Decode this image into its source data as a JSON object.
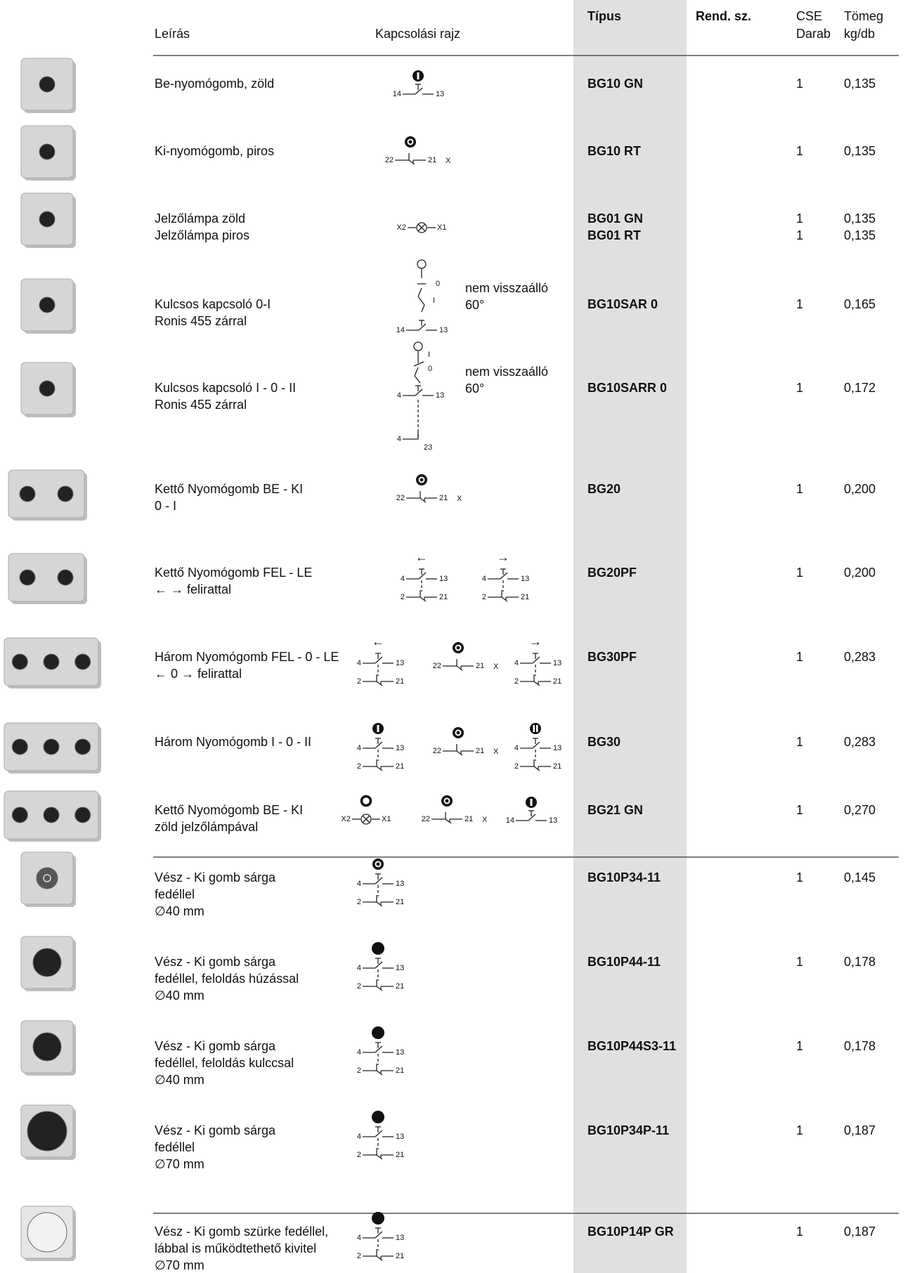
{
  "header": {
    "description": "Leírás",
    "diagram": "Kapcsolási rajz",
    "type": "Típus",
    "order_no": "Rend. sz.",
    "qty": [
      "CSE",
      "Darab"
    ],
    "weight": [
      "Tömeg",
      "kg/db"
    ]
  },
  "rows": [
    {
      "description": [
        "Be-nyomógomb, zöld"
      ],
      "diagram": [
        {
          "kind": "no",
          "cap": "bar",
          "labels": [
            "14",
            "13"
          ]
        }
      ],
      "types": [
        "BG10 GN"
      ],
      "qty": [
        1
      ],
      "weight": [
        "0,135"
      ]
    },
    {
      "description": [
        "Ki-nyomógomb, piros"
      ],
      "diagram": [
        {
          "kind": "nc",
          "cap": "ring",
          "labels": [
            "22",
            "21"
          ],
          "suffix": "X"
        }
      ],
      "types": [
        "BG10 RT"
      ],
      "qty": [
        1
      ],
      "weight": [
        "0,135"
      ]
    },
    {
      "description": [
        "Jelzőlámpa zöld",
        "Jelzőlámpa piros"
      ],
      "diagram": [
        {
          "kind": "lamp",
          "labels": [
            "X2",
            "X1"
          ]
        }
      ],
      "types": [
        "BG01 GN",
        "BG01 RT"
      ],
      "qty": [
        1,
        1
      ],
      "weight": [
        "0,135",
        "0,135"
      ]
    },
    {
      "description": [
        "Kulcsos kapcsoló 0-I",
        "Ronis 455 zárral"
      ],
      "diagram": [
        {
          "kind": "key1",
          "labels": [
            "0",
            "I",
            "14",
            "13"
          ]
        }
      ],
      "note": [
        "nem visszaálló",
        "60°"
      ],
      "types": [
        "BG10SAR 0"
      ],
      "qty": [
        1
      ],
      "weight": [
        "0,165"
      ]
    },
    {
      "description": [
        "Kulcsos kapcsoló I - 0 - II",
        "Ronis 455 zárral"
      ],
      "diagram": [
        {
          "kind": "key2",
          "labels": [
            "I",
            "0",
            "4",
            "13",
            "4",
            "23"
          ]
        }
      ],
      "note": [
        "nem visszaálló",
        "60°"
      ],
      "types": [
        "BG10SARR 0"
      ],
      "qty": [
        1
      ],
      "weight": [
        "0,172"
      ]
    },
    {
      "description": [
        "Kettő Nyomógomb BE - KI",
        "0 - I"
      ],
      "diagram": [
        {
          "kind": "nc",
          "cap": "ring",
          "labels": [
            "22",
            "21"
          ],
          "suffix": "X"
        }
      ],
      "types": [
        "BG20"
      ],
      "qty": [
        1
      ],
      "weight": [
        "0,200"
      ]
    },
    {
      "description": [
        "Kettő Nyomógomb FEL - LE",
        "← → felirattal"
      ],
      "diagram": [
        {
          "kind": "combo",
          "head": "←",
          "labels": [
            "4",
            "13",
            "2",
            "21"
          ]
        },
        {
          "kind": "combo",
          "head": "→",
          "labels": [
            "4",
            "13",
            "2",
            "21"
          ]
        }
      ],
      "types": [
        "BG20PF"
      ],
      "qty": [
        1
      ],
      "weight": [
        "0,200"
      ]
    },
    {
      "description": [
        "Három Nyomógomb FEL - 0 - LE",
        "←  0  → felirattal"
      ],
      "diagram": [
        {
          "kind": "combo",
          "head": "←",
          "labels": [
            "4",
            "13",
            "2",
            "21"
          ]
        },
        {
          "kind": "nc",
          "cap": "ring",
          "labels": [
            "22",
            "21"
          ],
          "suffix": "X"
        },
        {
          "kind": "combo",
          "head": "→",
          "labels": [
            "4",
            "13",
            "2",
            "21"
          ]
        }
      ],
      "types": [
        "BG30PF"
      ],
      "qty": [
        1
      ],
      "weight": [
        "0,283"
      ]
    },
    {
      "description": [
        "Három Nyomógomb I - 0 - II"
      ],
      "diagram": [
        {
          "kind": "combo",
          "cap": "bar",
          "labels": [
            "4",
            "13",
            "2",
            "21"
          ]
        },
        {
          "kind": "nc",
          "cap": "ring",
          "labels": [
            "22",
            "21"
          ],
          "suffix": "X"
        },
        {
          "kind": "combo",
          "cap": "double",
          "labels": [
            "4",
            "13",
            "2",
            "21"
          ]
        }
      ],
      "types": [
        "BG30"
      ],
      "qty": [
        1
      ],
      "weight": [
        "0,283"
      ]
    },
    {
      "description": [
        "Kettő Nyomógomb BE - KI",
        "zöld jelzőlámpával"
      ],
      "diagram": [
        {
          "kind": "lamp",
          "cap": "hollow",
          "labels": [
            "X2",
            "X1"
          ]
        },
        {
          "kind": "nc",
          "cap": "ring",
          "labels": [
            "22",
            "21"
          ],
          "suffix": "X"
        },
        {
          "kind": "no",
          "cap": "bar",
          "labels": [
            "14",
            "13"
          ]
        }
      ],
      "types": [
        "BG21 GN"
      ],
      "qty": [
        1
      ],
      "weight": [
        "0,270"
      ]
    },
    {
      "description": [
        "Vész - Ki gomb sárga",
        "fedéllel",
        "∅40 mm"
      ],
      "diagram": [
        {
          "kind": "combo",
          "cap": "ring",
          "labels": [
            "4",
            "13",
            "2",
            "21"
          ]
        }
      ],
      "types": [
        "BG10P34-11"
      ],
      "qty": [
        1
      ],
      "weight": [
        "0,145"
      ]
    },
    {
      "description": [
        "Vész - Ki gomb sárga",
        "fedéllel, feloldás húzással",
        "∅40 mm"
      ],
      "diagram": [
        {
          "kind": "combo",
          "cap": "solid",
          "labels": [
            "4",
            "13",
            "2",
            "21"
          ]
        }
      ],
      "types": [
        "BG10P44-11"
      ],
      "qty": [
        1
      ],
      "weight": [
        "0,178"
      ]
    },
    {
      "description": [
        "Vész - Ki gomb sárga",
        "fedéllel, feloldás kulccsal",
        "∅40 mm"
      ],
      "diagram": [
        {
          "kind": "combo",
          "cap": "solid",
          "labels": [
            "4",
            "13",
            "2",
            "21"
          ]
        }
      ],
      "types": [
        "BG10P44S3-11"
      ],
      "qty": [
        1
      ],
      "weight": [
        "0,178"
      ]
    },
    {
      "description": [
        "Vész - Ki gomb sárga",
        "fedéllel",
        "∅70 mm"
      ],
      "diagram": [
        {
          "kind": "combo",
          "cap": "solid",
          "labels": [
            "4",
            "13",
            "2",
            "21"
          ]
        }
      ],
      "types": [
        "BG10P34P-11"
      ],
      "qty": [
        1
      ],
      "weight": [
        "0,187"
      ]
    },
    {
      "description": [
        "Vész - Ki gomb szürke fedéllel,",
        "lábbal is működtethető kivitel",
        "∅70 mm"
      ],
      "diagram": [
        {
          "kind": "combo",
          "cap": "solid",
          "labels": [
            "4",
            "13",
            "2",
            "21"
          ]
        }
      ],
      "types": [
        "BG10P14P GR"
      ],
      "qty": [
        1
      ],
      "weight": [
        "0,187"
      ]
    }
  ]
}
